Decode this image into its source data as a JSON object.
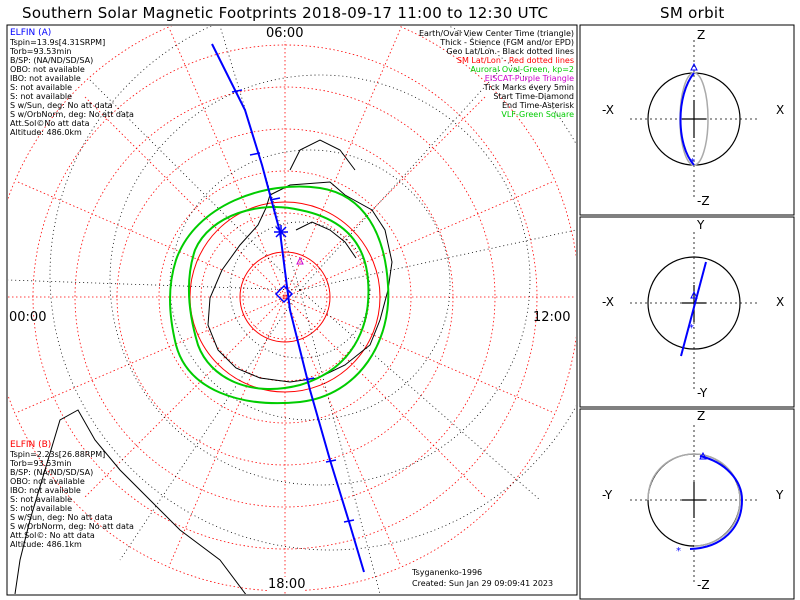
{
  "header": {
    "title": "Southern Solar Magnetic Footprints 2018-09-17 11:00 to 12:30 UTC",
    "orbit_title": "SM orbit"
  },
  "map": {
    "mlt_top": "06:00",
    "mlt_left": "00:00",
    "mlt_right": "12:00",
    "mlt_bottom": "18:00"
  },
  "probe_a": {
    "title": "ELFIN (A)",
    "color": "#0000ff",
    "lines": [
      "Tspin=13.9s[4.31SRPM]",
      "Torb=93.53min",
      "B/SP: (NA/ND/SD/SA)",
      "OBO: not available",
      "IBO: not available",
      "S: not available",
      "S: not available",
      "S w/Sun, deg: No att data",
      "S w/OrbNorm, deg: No att data",
      "Att.Sol©No att data",
      "Altitude: 486.0km"
    ]
  },
  "probe_b": {
    "title": "ELFIN (B)",
    "color": "#ff0000",
    "lines": [
      "Tspin=2.23s[26.88RPM]",
      "Torb=93.53min",
      "B/SP: (NA/ND/SD/SA)",
      "OBO: not available",
      "IBO: not available",
      "S: not available",
      "S: not available",
      "S w/Sun, deg: No att data",
      "S w/OrbNorm, deg: No att data",
      "Att.Sol©: No att data",
      "Altitude: 486.1km"
    ]
  },
  "legend": [
    {
      "text": "Earth/Oval View Center Time (triangle)",
      "color": "#000000"
    },
    {
      "text": "Thick - Science (FGM and/or EPD)",
      "color": "#000000"
    },
    {
      "text": "Geo Lat/Lon - Black dotted lines",
      "color": "#000000"
    },
    {
      "text": "SM Lat/Lon - Red dotted lines",
      "color": "#ff0000"
    },
    {
      "text": "Auroral Oval-Green, kp=2",
      "color": "#00cc00"
    },
    {
      "text": "EISCAT-Purple Triangle",
      "color": "#cc00cc"
    },
    {
      "text": "Tick Marks every 5min",
      "color": "#000000"
    },
    {
      "text": "Start Time-Diamond",
      "color": "#000000"
    },
    {
      "text": "End Time-Asterisk",
      "color": "#000000"
    },
    {
      "text": "VLF-Green Square",
      "color": "#00cc00"
    }
  ],
  "footer": {
    "model": "Tsyganenko-1996",
    "created": "Created: Sun Jan 29 09:09:41 2023"
  },
  "orbit_panels": [
    {
      "top": "Z",
      "bottom": "-Z",
      "left": "-X",
      "right": "X"
    },
    {
      "top": "Y",
      "bottom": "-Y",
      "left": "-X",
      "right": "X"
    },
    {
      "top": "Z",
      "bottom": "-Z",
      "left": "-Y",
      "right": "Y"
    }
  ],
  "colors": {
    "trace": "#0000ff",
    "oval": "#00cc00",
    "sm_grid": "#ff0000",
    "geo_grid": "#000000"
  }
}
